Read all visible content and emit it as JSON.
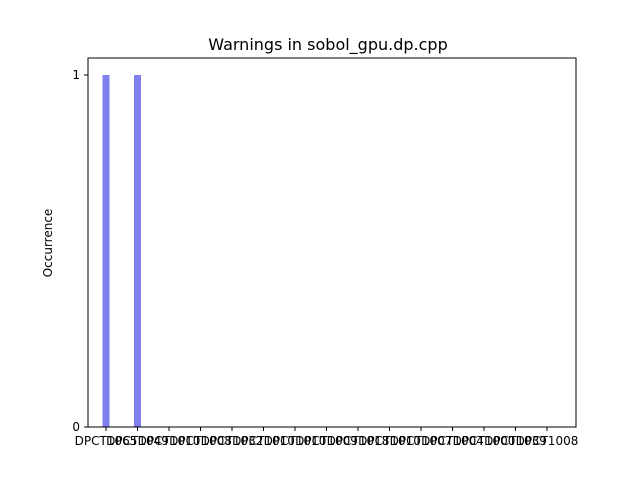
{
  "chart_data": {
    "type": "bar",
    "title": "Warnings in sobol_gpu.dp.cpp",
    "xlabel": "",
    "ylabel": "Occurrence",
    "categories": [
      "DPCT1065",
      "DPCT1049",
      "DPCT1010",
      "DPCT1008",
      "DPCT1032",
      "DPCT1010",
      "DPCT1010",
      "DPCT1009",
      "DPCT1018",
      "DPCT1010",
      "DPCT1007",
      "DPCT1004",
      "DPCT1000",
      "DPCT1039",
      "DPCT1008"
    ],
    "values": [
      1,
      1,
      0,
      0,
      0,
      0,
      0,
      0,
      0,
      0,
      0,
      0,
      0,
      0,
      0
    ],
    "ylim": [
      0,
      1
    ],
    "yticks": [
      0,
      1
    ],
    "bar_color": "#7f7ff0",
    "grid": false
  }
}
